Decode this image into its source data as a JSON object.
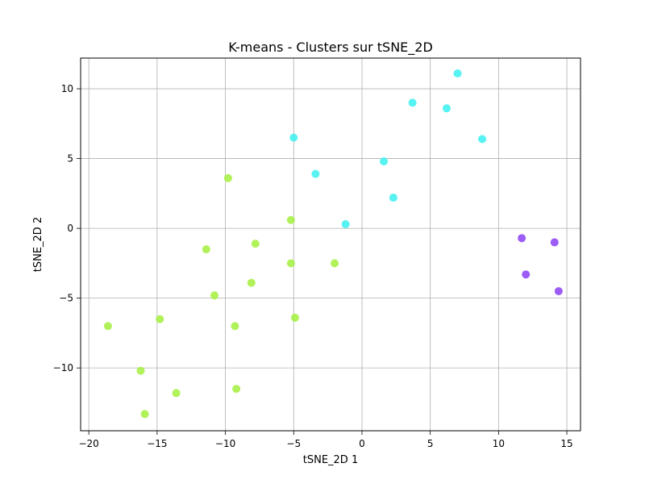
{
  "chart_data": {
    "type": "scatter",
    "title": "K-means - Clusters sur tSNE_2D",
    "xlabel": "tSNE_2D 1",
    "ylabel": "tSNE_2D 2",
    "xlim": [
      -20.6,
      16.0
    ],
    "ylim": [
      -14.5,
      12.2
    ],
    "xticks": [
      -20,
      -15,
      -10,
      -5,
      0,
      5,
      10,
      15
    ],
    "xtick_labels": [
      "−20",
      "−15",
      "−10",
      "−5",
      "0",
      "5",
      "10",
      "15"
    ],
    "yticks": [
      -10,
      -5,
      0,
      5,
      10
    ],
    "ytick_labels": [
      "−10",
      "−5",
      "0",
      "5",
      "10"
    ],
    "grid": true,
    "legend": null,
    "series": [
      {
        "color": "#8b3ff5",
        "points": [
          {
            "x": 11.7,
            "y": -0.7
          },
          {
            "x": 14.1,
            "y": -1.0
          },
          {
            "x": 12.0,
            "y": -3.3
          },
          {
            "x": 14.4,
            "y": -4.5
          }
        ]
      },
      {
        "color": "#39f0f0",
        "points": [
          {
            "x": 7.0,
            "y": 11.1
          },
          {
            "x": 3.7,
            "y": 9.0
          },
          {
            "x": 6.2,
            "y": 8.6
          },
          {
            "x": -5.0,
            "y": 6.5
          },
          {
            "x": 8.8,
            "y": 6.4
          },
          {
            "x": 1.6,
            "y": 4.8
          },
          {
            "x": -3.4,
            "y": 3.9
          },
          {
            "x": 2.3,
            "y": 2.2
          },
          {
            "x": -1.2,
            "y": 0.3
          }
        ]
      },
      {
        "color": "#a3f03d",
        "points": [
          {
            "x": -9.8,
            "y": 3.6
          },
          {
            "x": -5.2,
            "y": 0.6
          },
          {
            "x": -7.8,
            "y": -1.1
          },
          {
            "x": -11.4,
            "y": -1.5
          },
          {
            "x": -5.2,
            "y": -2.5
          },
          {
            "x": -2.0,
            "y": -2.5
          },
          {
            "x": -8.1,
            "y": -3.9
          },
          {
            "x": -10.8,
            "y": -4.8
          },
          {
            "x": -4.9,
            "y": -6.4
          },
          {
            "x": -14.8,
            "y": -6.5
          },
          {
            "x": -18.6,
            "y": -7.0
          },
          {
            "x": -9.3,
            "y": -7.0
          },
          {
            "x": -16.2,
            "y": -10.2
          },
          {
            "x": -13.6,
            "y": -11.8
          },
          {
            "x": -9.2,
            "y": -11.5
          },
          {
            "x": -15.9,
            "y": -13.3
          }
        ]
      }
    ]
  }
}
